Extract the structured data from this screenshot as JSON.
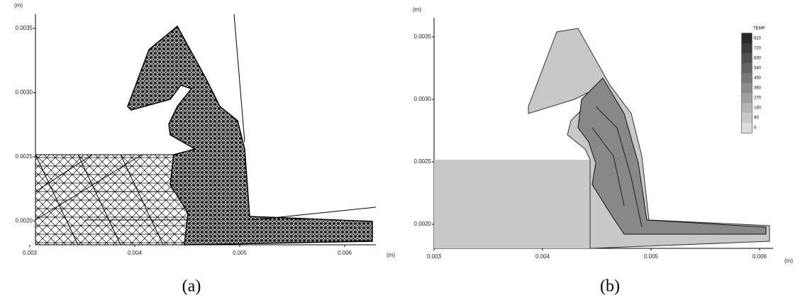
{
  "panels": [
    {
      "y_unit": "(m)",
      "x_unit": "(m)",
      "yticks": [
        "0.0035",
        "0.0030",
        "0.0025",
        "0.0020"
      ],
      "xticks": [
        "0.003",
        "0.004",
        "0.005",
        "0.006"
      ],
      "caption": "(a)"
    },
    {
      "y_unit": "(m)",
      "x_unit": "(m)",
      "yticks": [
        "0.0035",
        "0.0030",
        "0.0025",
        "0.0020"
      ],
      "xticks": [
        "0.003",
        "0.004",
        "0.005",
        "0.006"
      ],
      "caption": "(b)",
      "legend": {
        "title": "TEMP",
        "entries": [
          "810",
          "720",
          "630",
          "540",
          "450",
          "360",
          "270",
          "180",
          "90",
          "0"
        ]
      }
    }
  ]
}
